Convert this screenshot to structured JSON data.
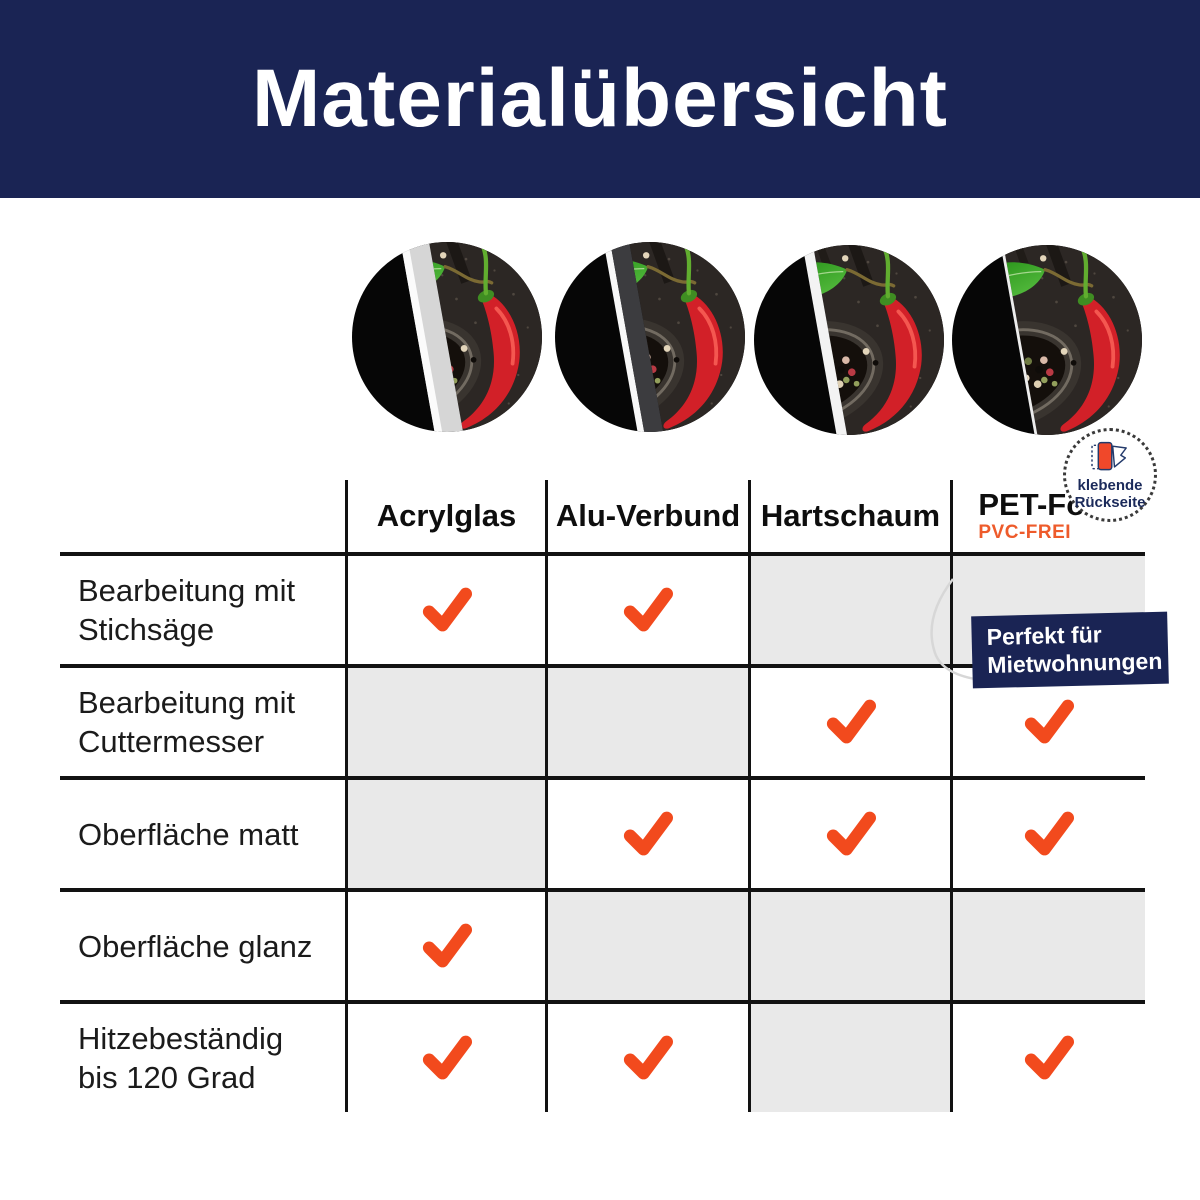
{
  "header": {
    "title": "Materialübersicht"
  },
  "materials": [
    {
      "id": "acrylglas",
      "label": "Acrylglas",
      "sub": ""
    },
    {
      "id": "alu-verbund",
      "label": "Alu-Verbund",
      "sub": ""
    },
    {
      "id": "hartschaum",
      "label": "Hartschaum",
      "sub": ""
    },
    {
      "id": "pet-folie",
      "label": "PET-Folie",
      "sub": "PVC-FREI"
    }
  ],
  "pet_badge": {
    "line1": "klebende",
    "line2": "Rückseite"
  },
  "pet_banner": {
    "line1": "Perfekt für",
    "line2": "Mietwohnungen"
  },
  "table": {
    "rows": [
      {
        "label_lines": [
          "Bearbeitung mit",
          "Stichsäge"
        ],
        "checks": [
          true,
          true,
          false,
          false
        ]
      },
      {
        "label_lines": [
          "Bearbeitung mit",
          "Cuttermesser"
        ],
        "checks": [
          false,
          false,
          true,
          true
        ]
      },
      {
        "label_lines": [
          "Oberfläche matt"
        ],
        "checks": [
          false,
          true,
          true,
          true
        ]
      },
      {
        "label_lines": [
          "Oberfläche glanz"
        ],
        "checks": [
          true,
          false,
          false,
          false
        ]
      },
      {
        "label_lines": [
          "Hitzebeständig",
          "bis 120 Grad"
        ],
        "checks": [
          true,
          true,
          false,
          true
        ]
      }
    ]
  },
  "chart_data": {
    "type": "table",
    "title": "Materialübersicht",
    "columns": [
      "Acrylglas",
      "Alu-Verbund",
      "Hartschaum",
      "PET-Folie (PVC-FREI)"
    ],
    "rows": [
      "Bearbeitung mit Stichsäge",
      "Bearbeitung mit Cuttermesser",
      "Oberfläche matt",
      "Oberfläche glanz",
      "Hitzebeständig bis 120 Grad"
    ],
    "values": [
      [
        true,
        true,
        false,
        false
      ],
      [
        false,
        false,
        true,
        true
      ],
      [
        false,
        true,
        true,
        true
      ],
      [
        true,
        false,
        false,
        false
      ],
      [
        true,
        true,
        false,
        true
      ]
    ]
  },
  "colors": {
    "navy": "#1a2454",
    "check_orange": "#f24a1d",
    "accent_orange": "#ee5b2b",
    "cell_gray": "#e9e9e9"
  }
}
